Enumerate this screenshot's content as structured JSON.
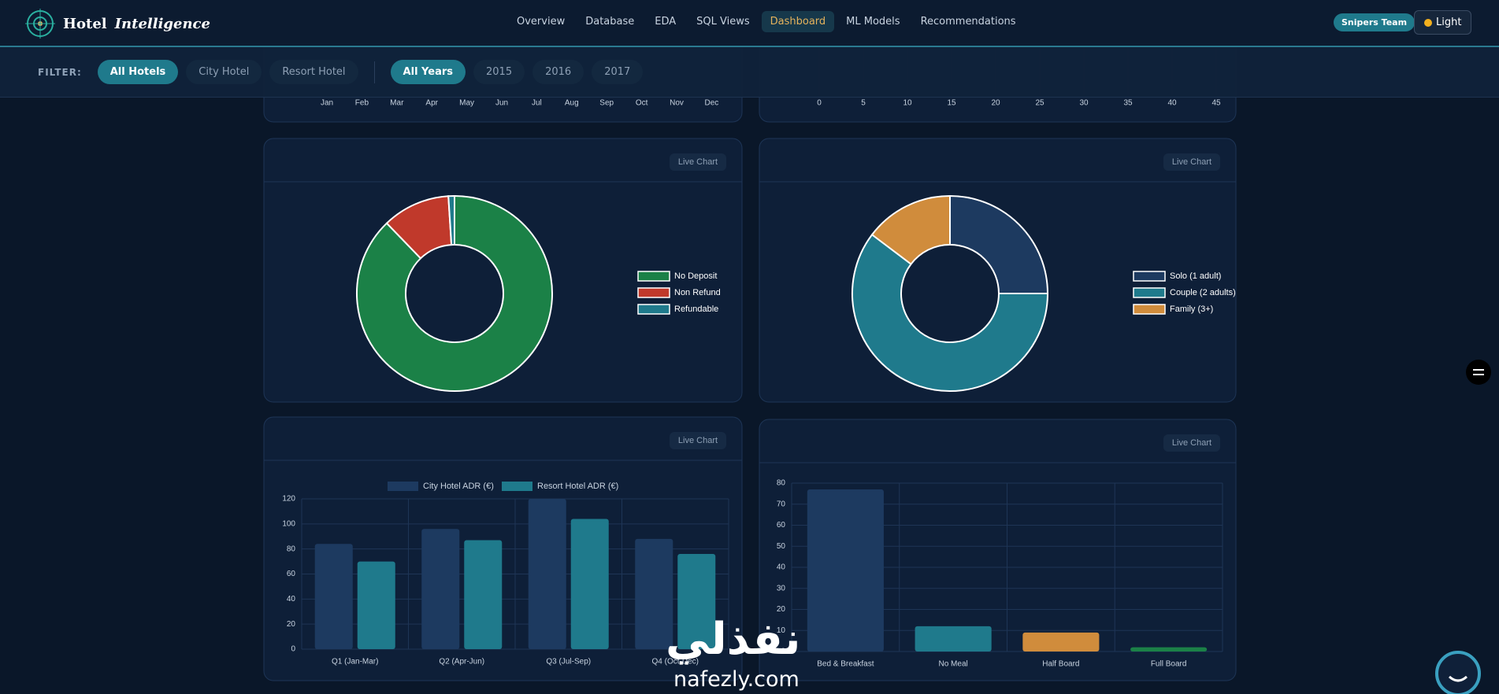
{
  "header": {
    "brand": "Hotel",
    "brand_em": "Intelligence",
    "nav": [
      {
        "label": "Overview",
        "active": false
      },
      {
        "label": "Database",
        "active": false
      },
      {
        "label": "EDA",
        "active": false
      },
      {
        "label": "SQL Views",
        "active": false
      },
      {
        "label": "Dashboard",
        "active": true
      },
      {
        "label": "ML Models",
        "active": false
      },
      {
        "label": "Recommendations",
        "active": false
      }
    ],
    "team": "Snipers Team",
    "theme_button": "Light"
  },
  "filters": {
    "label": "FILTER:",
    "hotels": [
      {
        "label": "All Hotels",
        "active": true
      },
      {
        "label": "City Hotel",
        "active": false
      },
      {
        "label": "Resort Hotel",
        "active": false
      }
    ],
    "years": [
      {
        "label": "All Years",
        "active": true
      },
      {
        "label": "2015",
        "active": false
      },
      {
        "label": "2016",
        "active": false
      },
      {
        "label": "2017",
        "active": false
      }
    ]
  },
  "top_charts": [
    {
      "categories": [
        "Jan",
        "Feb",
        "Mar",
        "Apr",
        "May",
        "Jun",
        "Jul",
        "Aug",
        "Sep",
        "Oct",
        "Nov",
        "Dec"
      ]
    },
    {
      "xlim": [
        0,
        45
      ],
      "xticks": [
        0,
        5,
        10,
        15,
        20,
        25,
        30,
        35,
        40,
        45
      ]
    }
  ],
  "charts": [
    {
      "type": "doughnut",
      "badge": "Live Chart",
      "categories": [
        "No Deposit",
        "Non Refund",
        "Refundable"
      ],
      "values": [
        87.8,
        11.2,
        1.0
      ],
      "colors": [
        "#1b8147",
        "#c0392b",
        "#1f7a8c"
      ]
    },
    {
      "type": "doughnut",
      "badge": "Live Chart",
      "categories": [
        "Solo (1 adult)",
        "Couple (2 adults)",
        "Family (3+)"
      ],
      "values": [
        25,
        60.3,
        14.7
      ],
      "colors": [
        "#1d3a60",
        "#1f7a8c",
        "#d08c3c"
      ]
    },
    {
      "type": "bar",
      "badge": "Live Chart",
      "categories": [
        "Q1 (Jan-Mar)",
        "Q2 (Apr-Jun)",
        "Q3 (Jul-Sep)",
        "Q4 (Oct-Dec)"
      ],
      "series": [
        {
          "name": "City Hotel ADR (€)",
          "color": "#1d3a60",
          "values": [
            84,
            96,
            120,
            88
          ]
        },
        {
          "name": "Resort Hotel ADR (€)",
          "color": "#1f7a8c",
          "values": [
            70,
            87,
            104,
            76
          ]
        }
      ],
      "ylim": [
        0,
        120
      ],
      "yticks": [
        0,
        20,
        40,
        60,
        80,
        100,
        120
      ],
      "grid": true
    },
    {
      "type": "bar",
      "badge": "Live Chart",
      "categories": [
        "Bed & Breakfast",
        "No Meal",
        "Half Board",
        "Full Board"
      ],
      "values": [
        77,
        12,
        9,
        2
      ],
      "colors": [
        "#1d3a60",
        "#1f7a8c",
        "#d08c3c",
        "#1b8147"
      ],
      "ylim": [
        0,
        80
      ],
      "yticks": [
        0,
        10,
        20,
        30,
        40,
        50,
        60,
        70,
        80
      ],
      "grid": true
    }
  ],
  "watermark": {
    "arabic": "نفذلي",
    "latin": "nafezly.com"
  }
}
